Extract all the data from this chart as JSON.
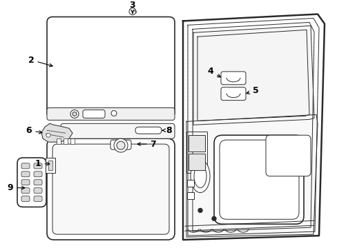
{
  "background_color": "#ffffff",
  "line_color": "#2a2a2a",
  "label_color": "#000000",
  "figsize": [
    4.89,
    3.6
  ],
  "dpi": 100,
  "hatch_color": "#aaaaaa"
}
